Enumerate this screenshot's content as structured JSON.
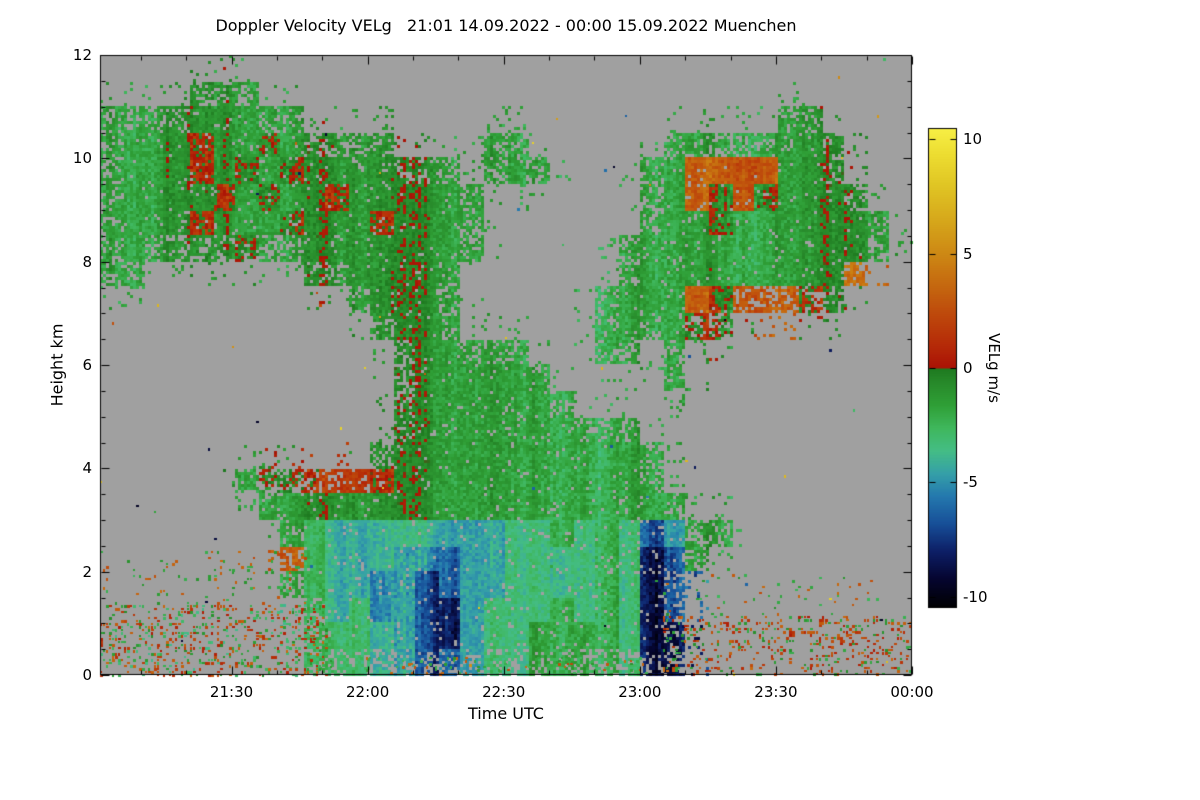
{
  "chart_data": {
    "type": "heatmap",
    "title": "Doppler Velocity VELg   21:01 14.09.2022 - 00:00 15.09.2022 Muenchen",
    "xlabel": "Time UTC",
    "ylabel": "Height km",
    "colorbar_label": "VELg m/s",
    "x_start": "21:01",
    "x_end": "00:00",
    "x_duration_minutes": 179,
    "x_ticks": [
      {
        "minutes": 29,
        "label": "21:30"
      },
      {
        "minutes": 59,
        "label": "22:00"
      },
      {
        "minutes": 89,
        "label": "22:30"
      },
      {
        "minutes": 119,
        "label": "23:00"
      },
      {
        "minutes": 149,
        "label": "23:30"
      },
      {
        "minutes": 179,
        "label": "00:00"
      }
    ],
    "x_minor_tick_minutes": 10,
    "y_range_km": [
      0,
      12
    ],
    "y_ticks": [
      {
        "km": 0,
        "label": "0"
      },
      {
        "km": 2,
        "label": "2"
      },
      {
        "km": 4,
        "label": "4"
      },
      {
        "km": 6,
        "label": "6"
      },
      {
        "km": 8,
        "label": "8"
      },
      {
        "km": 10,
        "label": "10"
      },
      {
        "km": 12,
        "label": "12"
      }
    ],
    "y_minor_tick_km": 0.5,
    "no_data_color": "#a0a0a0",
    "colorbar": {
      "min": -10.5,
      "max": 10.5,
      "ticks": [
        {
          "value": 10,
          "label": "10"
        },
        {
          "value": 5,
          "label": "5"
        },
        {
          "value": 0,
          "label": "0"
        },
        {
          "value": -5,
          "label": "-5"
        },
        {
          "value": -10,
          "label": "-10"
        }
      ],
      "stops": [
        [
          -10.5,
          "#000000"
        ],
        [
          -9.2,
          "#050530"
        ],
        [
          -8.0,
          "#0d1f66"
        ],
        [
          -6.8,
          "#174f98"
        ],
        [
          -5.6,
          "#2478ae"
        ],
        [
          -4.6,
          "#35a0a8"
        ],
        [
          -3.6,
          "#44bd85"
        ],
        [
          -2.6,
          "#3fb75c"
        ],
        [
          -1.6,
          "#2f9f36"
        ],
        [
          -0.6,
          "#27892a"
        ],
        [
          -0.02,
          "#1e7a20"
        ],
        [
          0.02,
          "#aa1205"
        ],
        [
          1.0,
          "#b52a08"
        ],
        [
          2.2,
          "#bd450b"
        ],
        [
          3.5,
          "#c4650f"
        ],
        [
          5.0,
          "#cd8814"
        ],
        [
          6.5,
          "#d6a81b"
        ],
        [
          8.0,
          "#e0c524"
        ],
        [
          9.3,
          "#ecdc30"
        ],
        [
          10.5,
          "#f7ef45"
        ]
      ]
    },
    "grid": {
      "time_bins": 36,
      "height_bins": 24,
      "minutes_per_bin": 4.972,
      "km_per_bin": 0.5,
      "no_data_char": ".",
      "value_key_m_per_s": {
        "g": -1.6,
        "m": -0.2,
        "f": -3.2,
        "c": -4.6,
        "b": -6.2,
        "B": -8.2,
        "r": 1.3,
        "o": 3.2
      },
      "rows_top_to_bottom": [
        "....................................",
        "....ggg.............................",
        "ggggggggg.....................gg....",
        "ggggmggmggggg....gg......gggggggg...",
        "ggggmgmgmggggggg.ggg....ggooooggg...",
        "gggggmgmggmgggggg.......ggomomgggg..",
        "ggggmgggmgggmgggg.......gggmggggggg.",
        "ggggggmgggggggggg......gggggggggggg.",
        "gg.......ggggggg.......ggggggggggo..",
        "...........ggggg......ggggomooomg...",
        "............gggg......ggggmm........",
        ".............gggggg...gg.g..........",
        ".............ggggggg.....g..........",
        ".............gggggggg...............",
        ".............ggggggggggg............",
        "............ggggggggggggg...........",
        "......gmmmrrmgggggggggggg...........",
        ".......ggggggggggggggggggg..........",
        "........gfccccccccffgfgfbcgg........",
        "........ofcccbbbccffffgfBbg.........",
        "........gfccbbBbccffffgfBb..........",
        ".........fcfbbBBcfffgfgfBb..........",
        ".........fffcbBBcffggggfBB..........",
        ".........fffcbBbcffggggfBB.........."
      ]
    },
    "speckle_regions": [
      {
        "t0": 0,
        "t1": 50,
        "h0": 0,
        "h1": 1.35,
        "density": 0.28,
        "values": [
          3,
          -1.5,
          1.2,
          -3
        ]
      },
      {
        "t0": 0,
        "t1": 46,
        "h0": 1.35,
        "h1": 2.4,
        "density": 0.07,
        "values": [
          -1.8,
          3
        ]
      },
      {
        "t0": 124,
        "t1": 179,
        "h0": 0,
        "h1": 1.15,
        "density": 0.26,
        "values": [
          3,
          -1.5,
          1.2
        ]
      },
      {
        "t0": 124,
        "t1": 172,
        "h0": 1.15,
        "h1": 1.95,
        "density": 0.06,
        "values": [
          3,
          -1.8
        ]
      },
      {
        "t0": 50,
        "t1": 124,
        "h0": 0,
        "h1": 0.35,
        "density": 0.1,
        "values": [
          3,
          -1.8
        ]
      },
      {
        "t0": 0,
        "t1": 179,
        "h0": 0,
        "h1": 12,
        "density": 0.0012,
        "values": [
          -9,
          3,
          8,
          -6,
          5.5,
          -2
        ]
      }
    ]
  }
}
